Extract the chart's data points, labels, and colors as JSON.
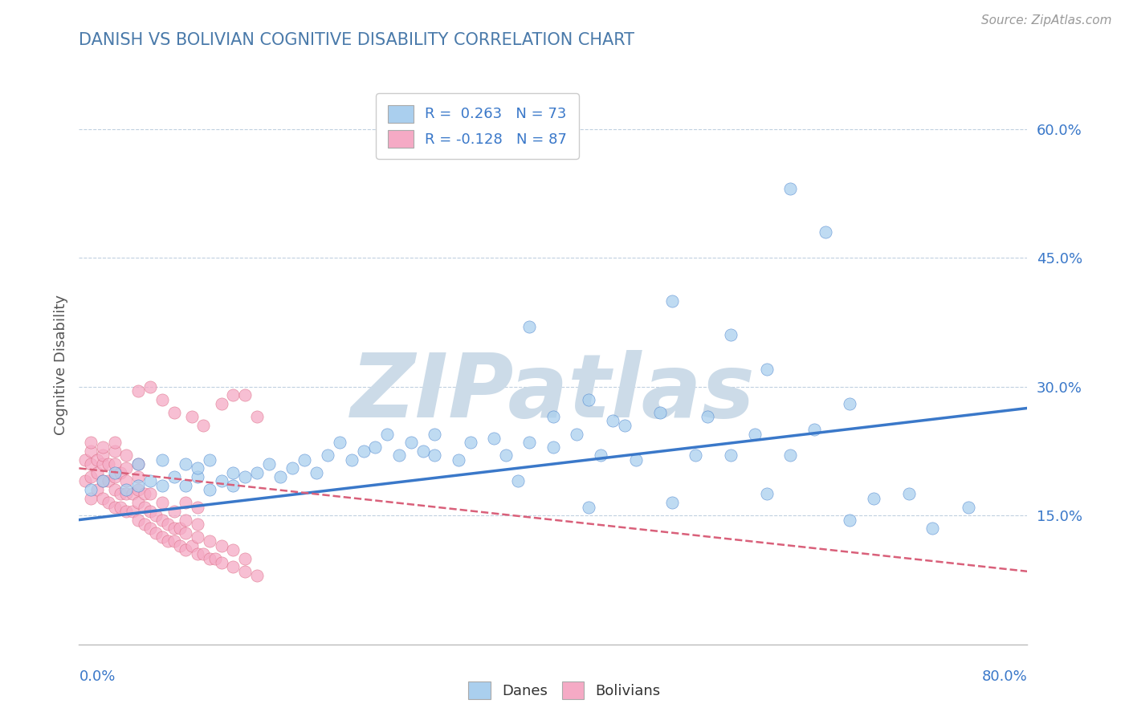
{
  "title": "DANISH VS BOLIVIAN COGNITIVE DISABILITY CORRELATION CHART",
  "source": "Source: ZipAtlas.com",
  "ylabel": "Cognitive Disability",
  "ytick_values": [
    0.0,
    0.15,
    0.3,
    0.45,
    0.6
  ],
  "ytick_labels": [
    "",
    "15.0%",
    "30.0%",
    "45.0%",
    "60.0%"
  ],
  "xlim": [
    0.0,
    0.8
  ],
  "ylim": [
    0.0,
    0.65
  ],
  "dane_color": "#aacfee",
  "bolivian_color": "#f5aac5",
  "dane_line_color": "#3a78c9",
  "bolivian_line_color": "#d9607a",
  "title_color": "#4a7aaa",
  "watermark_color": "#ccdbe8",
  "watermark_text": "ZIPatlas",
  "legend_dane_label": "R =  0.263   N = 73",
  "legend_bolivian_label": "R = -0.128   N = 87",
  "background_color": "#ffffff",
  "grid_color": "#c0d0e0",
  "danes_x": [
    0.01,
    0.02,
    0.03,
    0.04,
    0.05,
    0.05,
    0.06,
    0.07,
    0.07,
    0.08,
    0.09,
    0.09,
    0.1,
    0.1,
    0.11,
    0.11,
    0.12,
    0.13,
    0.13,
    0.14,
    0.15,
    0.16,
    0.17,
    0.18,
    0.19,
    0.2,
    0.21,
    0.22,
    0.23,
    0.24,
    0.25,
    0.26,
    0.27,
    0.28,
    0.29,
    0.3,
    0.3,
    0.32,
    0.33,
    0.35,
    0.36,
    0.37,
    0.38,
    0.4,
    0.42,
    0.43,
    0.44,
    0.45,
    0.46,
    0.47,
    0.49,
    0.5,
    0.52,
    0.53,
    0.55,
    0.57,
    0.58,
    0.6,
    0.62,
    0.65,
    0.67,
    0.7,
    0.72,
    0.75,
    0.38,
    0.4,
    0.43,
    0.5,
    0.55,
    0.58,
    0.6,
    0.63,
    0.65
  ],
  "danes_y": [
    0.18,
    0.19,
    0.2,
    0.18,
    0.21,
    0.185,
    0.19,
    0.185,
    0.215,
    0.195,
    0.185,
    0.21,
    0.195,
    0.205,
    0.18,
    0.215,
    0.19,
    0.2,
    0.185,
    0.195,
    0.2,
    0.21,
    0.195,
    0.205,
    0.215,
    0.2,
    0.22,
    0.235,
    0.215,
    0.225,
    0.23,
    0.245,
    0.22,
    0.235,
    0.225,
    0.22,
    0.245,
    0.215,
    0.235,
    0.24,
    0.22,
    0.19,
    0.235,
    0.23,
    0.245,
    0.16,
    0.22,
    0.26,
    0.255,
    0.215,
    0.27,
    0.165,
    0.22,
    0.265,
    0.22,
    0.245,
    0.175,
    0.22,
    0.25,
    0.145,
    0.17,
    0.175,
    0.135,
    0.16,
    0.37,
    0.265,
    0.285,
    0.4,
    0.36,
    0.32,
    0.53,
    0.48,
    0.28
  ],
  "bolivians_x": [
    0.005,
    0.005,
    0.01,
    0.01,
    0.01,
    0.01,
    0.01,
    0.015,
    0.015,
    0.015,
    0.02,
    0.02,
    0.02,
    0.02,
    0.02,
    0.025,
    0.025,
    0.025,
    0.03,
    0.03,
    0.03,
    0.03,
    0.03,
    0.03,
    0.035,
    0.035,
    0.035,
    0.04,
    0.04,
    0.04,
    0.04,
    0.04,
    0.045,
    0.045,
    0.05,
    0.05,
    0.05,
    0.05,
    0.05,
    0.055,
    0.055,
    0.055,
    0.06,
    0.06,
    0.06,
    0.065,
    0.065,
    0.07,
    0.07,
    0.07,
    0.075,
    0.075,
    0.08,
    0.08,
    0.08,
    0.085,
    0.085,
    0.09,
    0.09,
    0.09,
    0.09,
    0.095,
    0.1,
    0.1,
    0.1,
    0.1,
    0.105,
    0.11,
    0.11,
    0.115,
    0.12,
    0.12,
    0.13,
    0.13,
    0.14,
    0.14,
    0.15,
    0.05,
    0.06,
    0.07,
    0.08,
    0.095,
    0.105,
    0.12,
    0.13,
    0.14,
    0.15
  ],
  "bolivians_y": [
    0.19,
    0.215,
    0.17,
    0.195,
    0.21,
    0.225,
    0.235,
    0.18,
    0.2,
    0.215,
    0.17,
    0.19,
    0.21,
    0.22,
    0.23,
    0.165,
    0.19,
    0.21,
    0.16,
    0.18,
    0.195,
    0.21,
    0.225,
    0.235,
    0.16,
    0.175,
    0.2,
    0.155,
    0.175,
    0.19,
    0.205,
    0.22,
    0.155,
    0.175,
    0.145,
    0.165,
    0.18,
    0.195,
    0.21,
    0.14,
    0.16,
    0.175,
    0.135,
    0.155,
    0.175,
    0.13,
    0.15,
    0.125,
    0.145,
    0.165,
    0.12,
    0.14,
    0.12,
    0.135,
    0.155,
    0.115,
    0.135,
    0.11,
    0.13,
    0.145,
    0.165,
    0.115,
    0.105,
    0.125,
    0.14,
    0.16,
    0.105,
    0.1,
    0.12,
    0.1,
    0.095,
    0.115,
    0.09,
    0.11,
    0.085,
    0.1,
    0.265,
    0.295,
    0.3,
    0.285,
    0.27,
    0.265,
    0.255,
    0.28,
    0.29,
    0.29,
    0.08
  ],
  "dane_trend_x": [
    0.0,
    0.8
  ],
  "dane_trend_y": [
    0.145,
    0.275
  ],
  "bolivian_trend_x": [
    0.0,
    0.8
  ],
  "bolivian_trend_y": [
    0.205,
    0.085
  ]
}
